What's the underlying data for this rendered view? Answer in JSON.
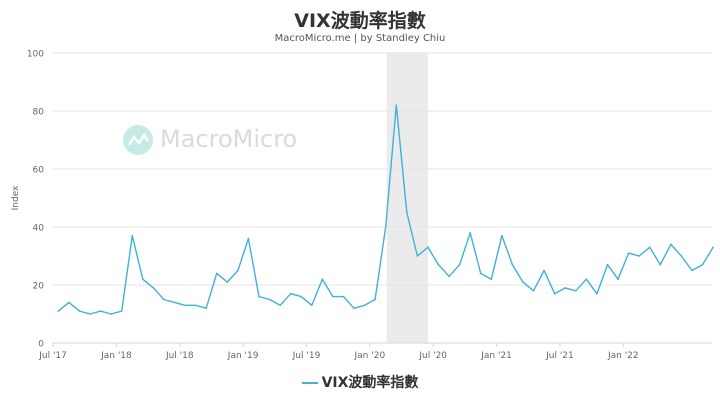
{
  "title": "VIX波動率指數",
  "subtitle": "MacroMicro.me | by Standley Chiu",
  "watermark": "MacroMicro",
  "colors": {
    "series": "#3fb2d8",
    "recession": "#ebebeb",
    "grid": "#e6e6e6"
  },
  "chart_data": {
    "type": "line",
    "title": "VIX波動率指數",
    "ylabel": "Index",
    "ylim": [
      0,
      100
    ],
    "yticks": [
      0,
      20,
      40,
      60,
      80,
      100
    ],
    "x_tick_labels": [
      "Jul '17",
      "Jan '18",
      "Jul '18",
      "Jan '19",
      "Jul '19",
      "Jan '20",
      "Jul '20",
      "Jan '21",
      "Jul '21",
      "Jan '22"
    ],
    "x_range": [
      "2017-07",
      "2022-09"
    ],
    "shaded_band": {
      "from": "2020-02",
      "to": "2020-06"
    },
    "series": [
      {
        "name": "VIX波動率指數",
        "points": [
          [
            "2017-07",
            11
          ],
          [
            "2017-08",
            14
          ],
          [
            "2017-09",
            11
          ],
          [
            "2017-10",
            10
          ],
          [
            "2017-11",
            11
          ],
          [
            "2017-12",
            10
          ],
          [
            "2018-01",
            11
          ],
          [
            "2018-02",
            37
          ],
          [
            "2018-03",
            22
          ],
          [
            "2018-04",
            19
          ],
          [
            "2018-05",
            15
          ],
          [
            "2018-06",
            14
          ],
          [
            "2018-07",
            13
          ],
          [
            "2018-08",
            13
          ],
          [
            "2018-09",
            12
          ],
          [
            "2018-10",
            24
          ],
          [
            "2018-11",
            21
          ],
          [
            "2018-12",
            25
          ],
          [
            "2019-01",
            36
          ],
          [
            "2019-02",
            16
          ],
          [
            "2019-03",
            15
          ],
          [
            "2019-04",
            13
          ],
          [
            "2019-05",
            17
          ],
          [
            "2019-06",
            16
          ],
          [
            "2019-07",
            13
          ],
          [
            "2019-08",
            22
          ],
          [
            "2019-09",
            16
          ],
          [
            "2019-10",
            16
          ],
          [
            "2019-11",
            12
          ],
          [
            "2019-12",
            13
          ],
          [
            "2020-01",
            15
          ],
          [
            "2020-02",
            40
          ],
          [
            "2020-03",
            82
          ],
          [
            "2020-04",
            45
          ],
          [
            "2020-05",
            30
          ],
          [
            "2020-06",
            33
          ],
          [
            "2020-07",
            27
          ],
          [
            "2020-08",
            23
          ],
          [
            "2020-09",
            27
          ],
          [
            "2020-10",
            38
          ],
          [
            "2020-11",
            24
          ],
          [
            "2020-12",
            22
          ],
          [
            "2021-01",
            37
          ],
          [
            "2021-02",
            27
          ],
          [
            "2021-03",
            21
          ],
          [
            "2021-04",
            18
          ],
          [
            "2021-05",
            25
          ],
          [
            "2021-06",
            17
          ],
          [
            "2021-07",
            19
          ],
          [
            "2021-08",
            18
          ],
          [
            "2021-09",
            22
          ],
          [
            "2021-10",
            17
          ],
          [
            "2021-11",
            27
          ],
          [
            "2021-12",
            22
          ],
          [
            "2022-01",
            31
          ],
          [
            "2022-02",
            30
          ],
          [
            "2022-03",
            33
          ],
          [
            "2022-04",
            27
          ],
          [
            "2022-05",
            34
          ],
          [
            "2022-06",
            30
          ],
          [
            "2022-07",
            25
          ],
          [
            "2022-08",
            27
          ],
          [
            "2022-09",
            33
          ]
        ]
      }
    ]
  }
}
